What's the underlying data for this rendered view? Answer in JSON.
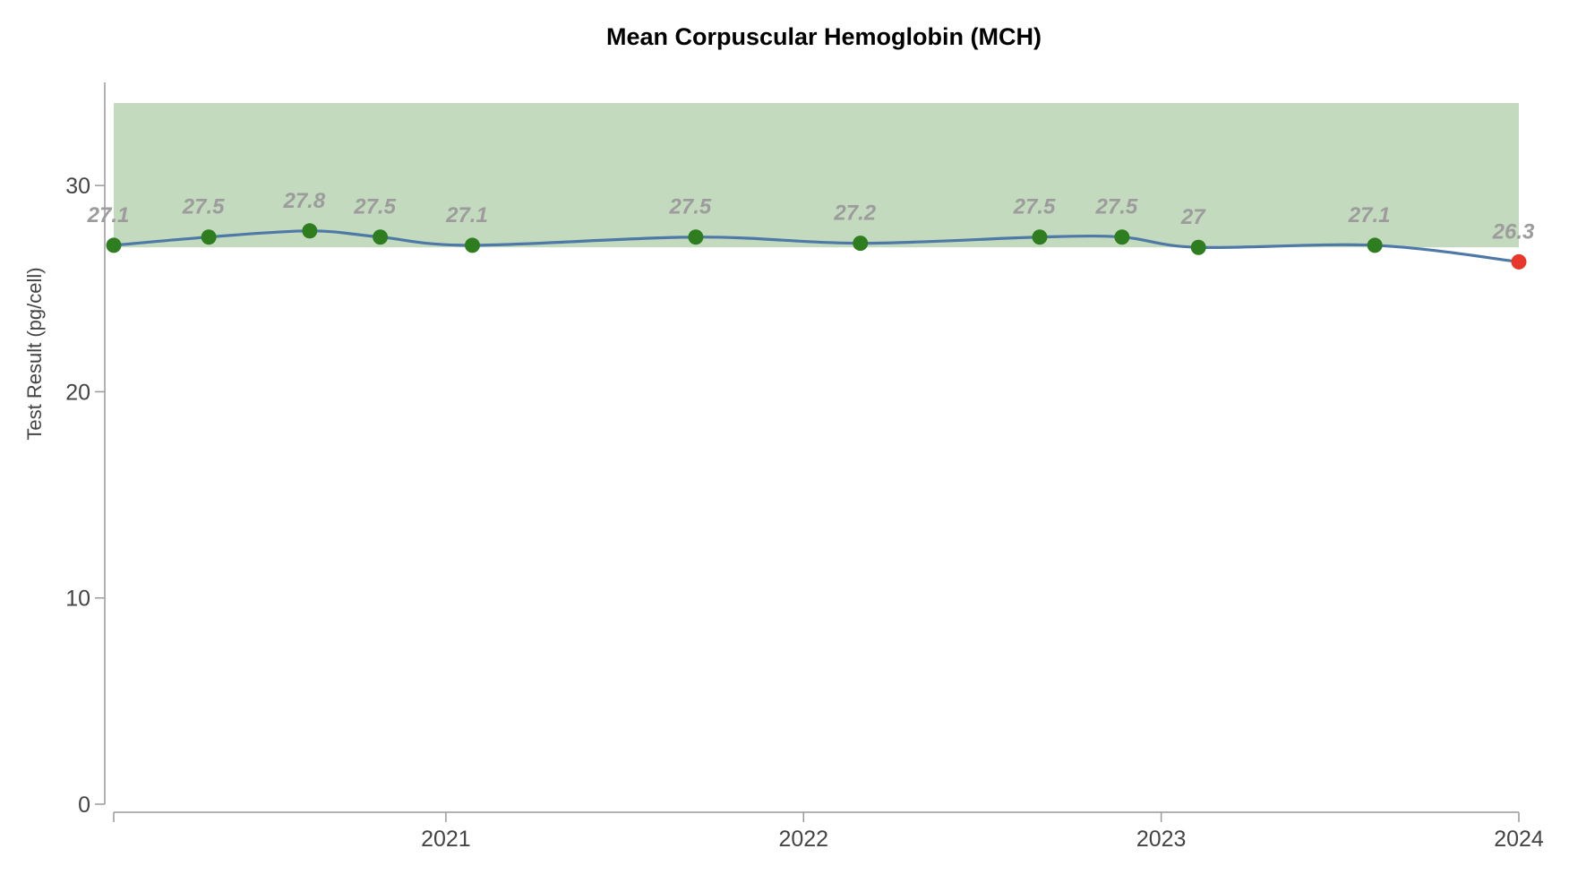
{
  "chart_data": {
    "type": "line",
    "title": "Mean Corpuscular Hemoglobin (MCH)",
    "xlabel": "",
    "ylabel": "Test Result (pg/cell)",
    "ylim": [
      0,
      35
    ],
    "yticks": [
      0,
      10,
      20,
      30
    ],
    "xlim": [
      "2020-01-28",
      "2024-01-01"
    ],
    "xticks": [
      {
        "date": "2021-01-01",
        "label": "2021"
      },
      {
        "date": "2022-01-01",
        "label": "2022"
      },
      {
        "date": "2023-01-01",
        "label": "2023"
      },
      {
        "date": "2024-01-01",
        "label": "2024"
      }
    ],
    "reference_range": {
      "low": 27,
      "high": 34,
      "color": "#c4dabe"
    },
    "line_color": "#4e79a7",
    "normal_color": "#2e7d1e",
    "abnormal_color": "#e8362b",
    "grid": false,
    "series": [
      {
        "points": [
          {
            "date": "2020-01-28",
            "value": 27.1,
            "label": "27.1",
            "status": "normal"
          },
          {
            "date": "2020-05-04",
            "value": 27.5,
            "label": "27.5",
            "status": "normal"
          },
          {
            "date": "2020-08-15",
            "value": 27.8,
            "label": "27.8",
            "status": "normal"
          },
          {
            "date": "2020-10-26",
            "value": 27.5,
            "label": "27.5",
            "status": "normal"
          },
          {
            "date": "2021-01-28",
            "value": 27.1,
            "label": "27.1",
            "status": "normal"
          },
          {
            "date": "2021-09-13",
            "value": 27.5,
            "label": "27.5",
            "status": "normal"
          },
          {
            "date": "2022-02-28",
            "value": 27.2,
            "label": "27.2",
            "status": "normal"
          },
          {
            "date": "2022-08-30",
            "value": 27.5,
            "label": "27.5",
            "status": "normal"
          },
          {
            "date": "2022-11-22",
            "value": 27.5,
            "label": "27.5",
            "status": "normal"
          },
          {
            "date": "2023-02-08",
            "value": 27,
            "label": "27",
            "status": "normal"
          },
          {
            "date": "2023-08-07",
            "value": 27.1,
            "label": "27.1",
            "status": "normal"
          },
          {
            "date": "2024-01-01",
            "value": 26.3,
            "label": "26.3",
            "status": "abnormal"
          }
        ]
      }
    ]
  }
}
